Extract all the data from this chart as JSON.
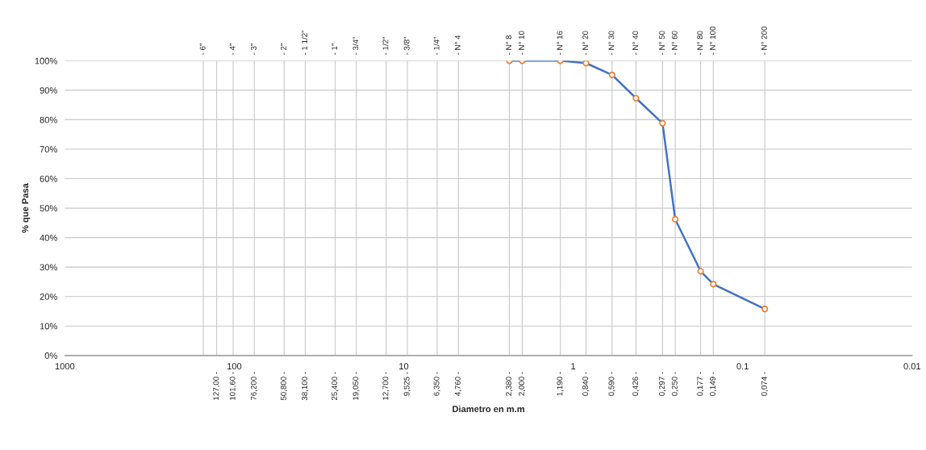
{
  "chart_data": {
    "type": "line",
    "xlabel": "Diametro en m.m",
    "ylabel": "% que Pasa",
    "x": [
      2.38,
      2.0,
      1.19,
      0.84,
      0.59,
      0.426,
      0.297,
      0.25,
      0.177,
      0.149,
      0.074
    ],
    "series": [
      {
        "color": "#4472c4",
        "line_style": "solid",
        "values": [
          100,
          100,
          100,
          99.2,
          95.2,
          87.3,
          78.8,
          46.2,
          28.6,
          24.2,
          15.8
        ]
      },
      {
        "type": "scatter",
        "color": "#ed7d31",
        "marker": "circle",
        "values": [
          100,
          100,
          100,
          99.2,
          95.2,
          87.3,
          78.8,
          46.2,
          28.6,
          24.2,
          15.8
        ]
      }
    ],
    "log": "x",
    "grid": "y",
    "xlim": [
      1000,
      0.01
    ],
    "xticks": [
      1000,
      100,
      10,
      1,
      0.1,
      0.01
    ],
    "ylim": [
      0,
      100
    ],
    "yticks": [
      {
        "value": 0,
        "label": "0%"
      },
      {
        "value": 10,
        "label": "10%"
      },
      {
        "value": 20,
        "label": "20%"
      },
      {
        "value": 30,
        "label": "30%"
      },
      {
        "value": 40,
        "label": "40%"
      },
      {
        "value": 50,
        "label": "50%"
      },
      {
        "value": 60,
        "label": "60%"
      },
      {
        "value": 70,
        "label": "70%"
      },
      {
        "value": 80,
        "label": "80%"
      },
      {
        "value": 90,
        "label": "90%"
      },
      {
        "value": 100,
        "label": "100%"
      }
    ],
    "ref_lines": [
      {
        "axis": "x",
        "value": 152.4
      },
      {
        "axis": "x",
        "value": 127.0,
        "label": "127,00 -"
      },
      {
        "axis": "x",
        "value": 101.6,
        "label": "101,60 -"
      },
      {
        "axis": "x",
        "value": 76.2,
        "label": "76,200 -"
      },
      {
        "axis": "x",
        "value": 50.8,
        "label": "50,800 -"
      },
      {
        "axis": "x",
        "value": 38.1,
        "label": "38,100 -"
      },
      {
        "axis": "x",
        "value": 25.4,
        "label": "25,400 -"
      },
      {
        "axis": "x",
        "value": 19.05,
        "label": "19,050 -"
      },
      {
        "axis": "x",
        "value": 12.7,
        "label": "12,700 -"
      },
      {
        "axis": "x",
        "value": 9.525,
        "label": "9,525 -"
      },
      {
        "axis": "x",
        "value": 6.35,
        "label": "6,350 -"
      },
      {
        "axis": "x",
        "value": 4.76,
        "label": "4,760 -"
      },
      {
        "axis": "x",
        "value": 2.38,
        "label": "2,380 -"
      },
      {
        "axis": "x",
        "value": 2.0,
        "label": "2,000 -"
      },
      {
        "axis": "x",
        "value": 1.19,
        "label": "1,190 -"
      },
      {
        "axis": "x",
        "value": 0.84,
        "label": "0,840 -"
      },
      {
        "axis": "x",
        "value": 0.59,
        "label": "0,590 -"
      },
      {
        "axis": "x",
        "value": 0.426,
        "label": "0,426 -"
      },
      {
        "axis": "x",
        "value": 0.297,
        "label": "0,297 -"
      },
      {
        "axis": "x",
        "value": 0.25,
        "label": "0,250 -"
      },
      {
        "axis": "x",
        "value": 0.177,
        "label": "0,177 -"
      },
      {
        "axis": "x",
        "value": 0.149,
        "label": "0,149 -"
      },
      {
        "axis": "x",
        "value": 0.074,
        "label": "0,074 -"
      }
    ],
    "annotations": [
      {
        "text": "- 6\"",
        "x": 152.4,
        "y": 100
      },
      {
        "text": "- 4\"",
        "x": 101.6,
        "y": 100
      },
      {
        "text": "- 3\"",
        "x": 76.2,
        "y": 100
      },
      {
        "text": "- 2\"",
        "x": 50.8,
        "y": 100
      },
      {
        "text": "- 1 1/2\"",
        "x": 38.1,
        "y": 100
      },
      {
        "text": "- 1\"",
        "x": 25.4,
        "y": 100
      },
      {
        "text": "- 3/4\"",
        "x": 19.05,
        "y": 100
      },
      {
        "text": "- 1/2\"",
        "x": 12.7,
        "y": 100
      },
      {
        "text": "- 3/8\"",
        "x": 9.525,
        "y": 100
      },
      {
        "text": "- 1/4\"",
        "x": 6.35,
        "y": 100
      },
      {
        "text": "- N° 4",
        "x": 4.76,
        "y": 100
      },
      {
        "text": "- N° 8",
        "x": 2.38,
        "y": 100
      },
      {
        "text": "- N° 10",
        "x": 2.0,
        "y": 100
      },
      {
        "text": "- N° 16",
        "x": 1.19,
        "y": 100
      },
      {
        "text": "- N° 20",
        "x": 0.84,
        "y": 100
      },
      {
        "text": "- N° 30",
        "x": 0.59,
        "y": 100
      },
      {
        "text": "- N° 40",
        "x": 0.426,
        "y": 100
      },
      {
        "text": "- N° 50",
        "x": 0.297,
        "y": 100
      },
      {
        "text": "- N° 60",
        "x": 0.25,
        "y": 100
      },
      {
        "text": "- N° 80",
        "x": 0.177,
        "y": 100
      },
      {
        "text": "- N° 100",
        "x": 0.149,
        "y": 100
      },
      {
        "text": "- N° 200",
        "x": 0.074,
        "y": 100
      }
    ]
  }
}
